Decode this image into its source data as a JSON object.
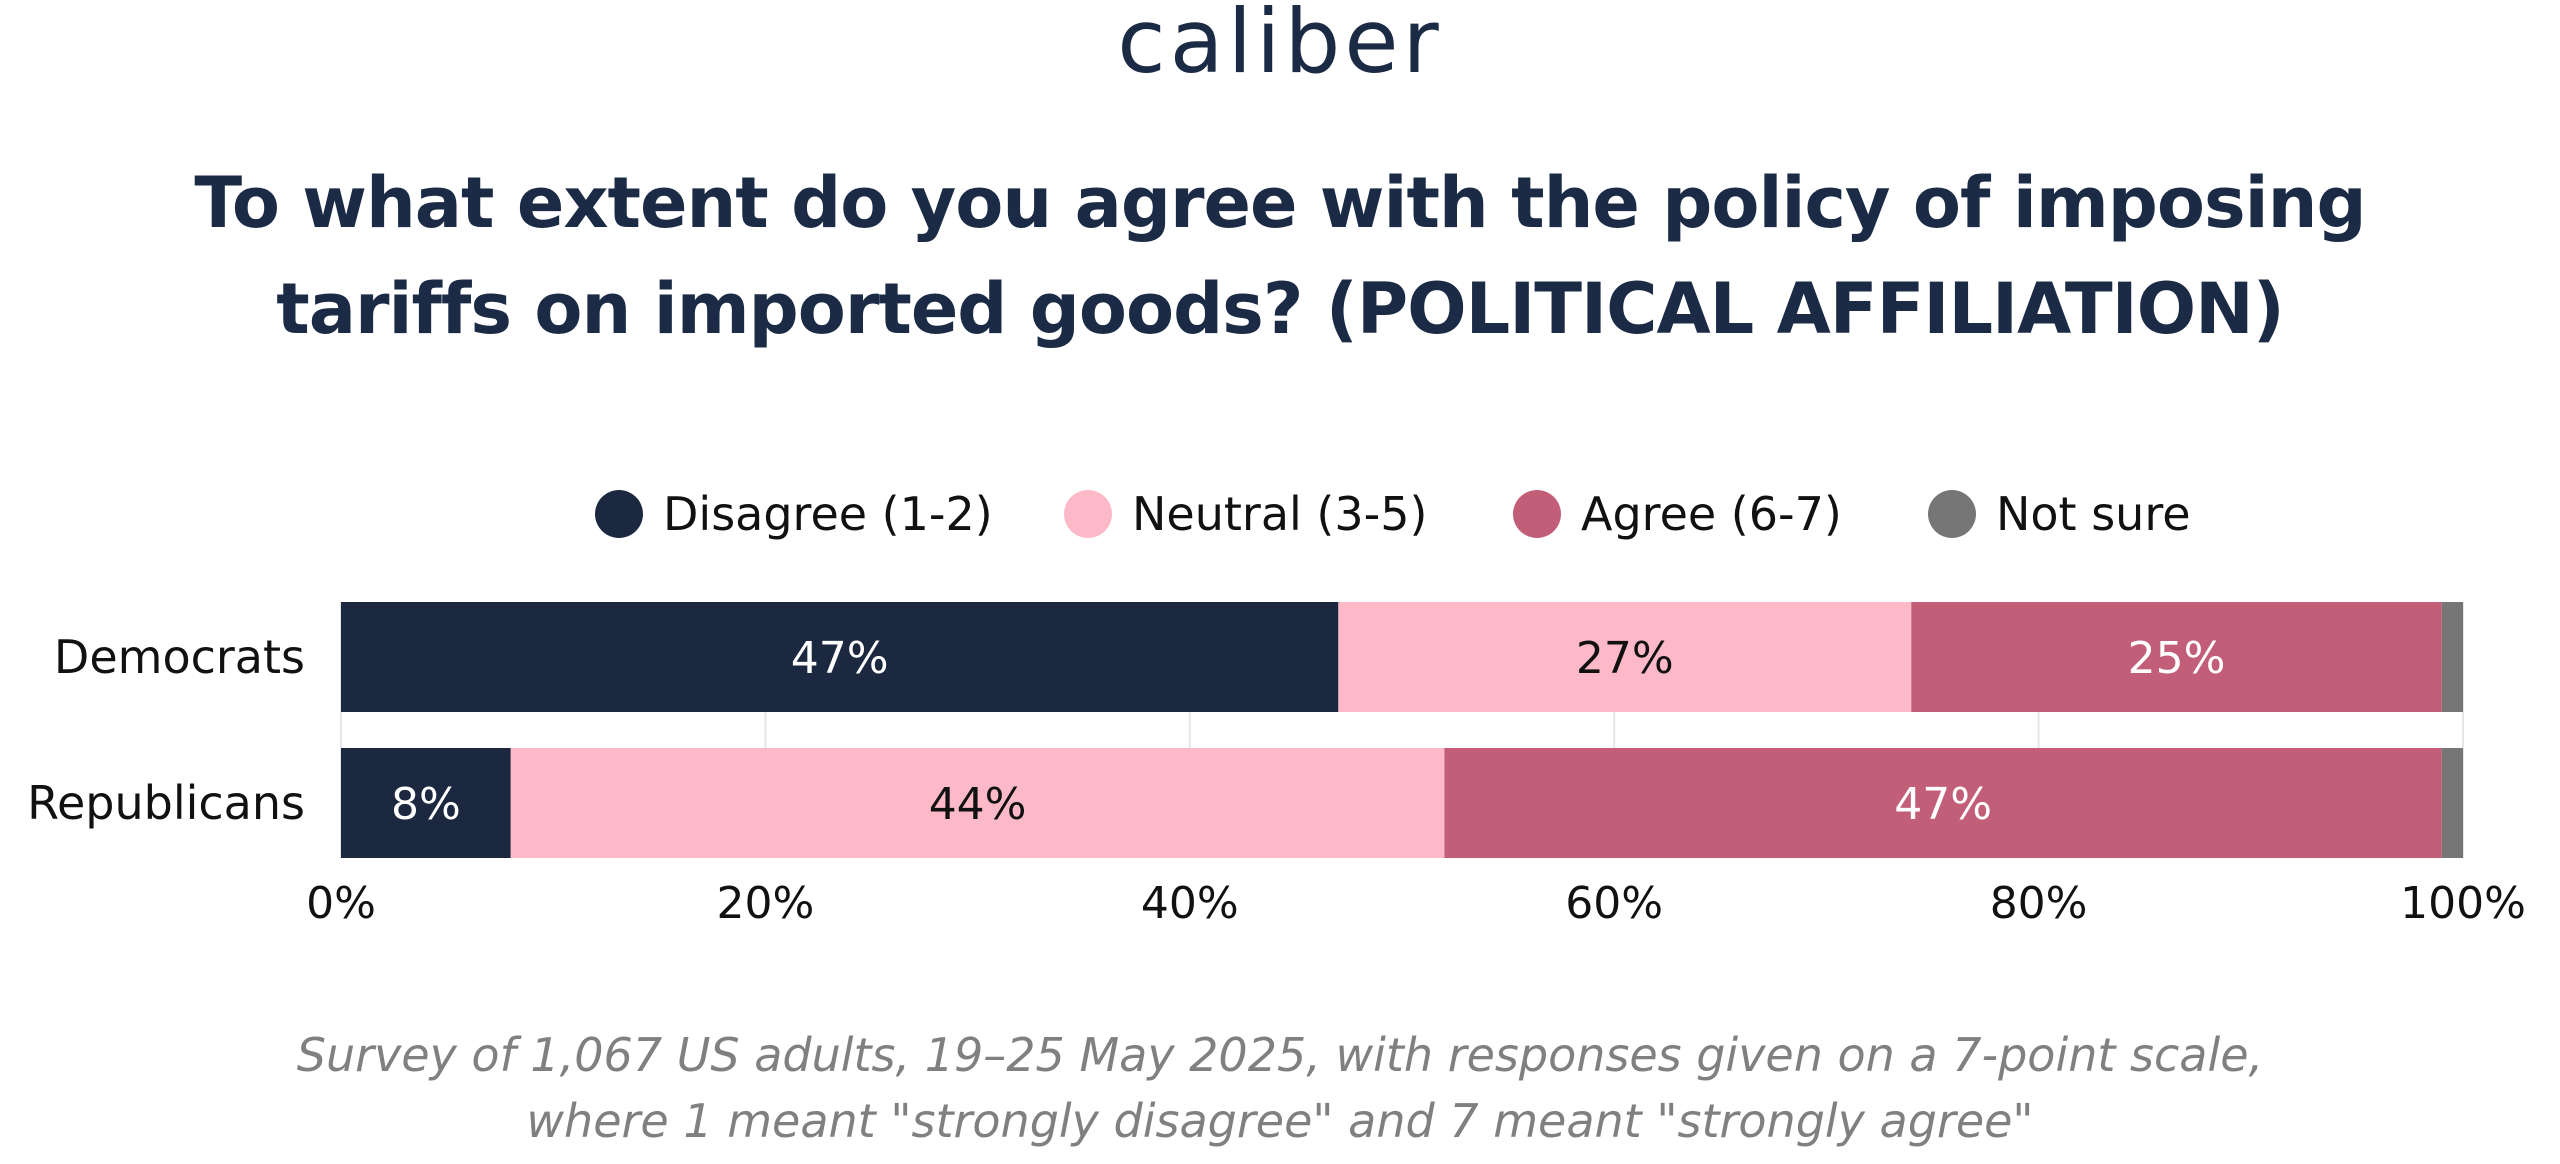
{
  "logo_text": "caliber",
  "title_lines": [
    "To what extent do you agree with the policy of imposing",
    "tariffs on imported goods? (POLITICAL AFFILIATION)"
  ],
  "footnote_lines": [
    "Survey of 1,067 US adults, 19–25 May 2025, with responses given on a 7-point scale,",
    "where 1 meant \"strongly disagree\" and 7 meant \"strongly agree\""
  ],
  "chart_data": {
    "type": "bar",
    "orientation": "horizontal",
    "stacked": true,
    "categories": [
      "Democrats",
      "Republicans"
    ],
    "series": [
      {
        "name": "Disagree (1-2)",
        "color": "#1b2840",
        "label_color": "#ffffff",
        "values": [
          47,
          8
        ],
        "labels": [
          "47%",
          "8%"
        ]
      },
      {
        "name": "Neutral (3-5)",
        "color": "#fdb9c7",
        "label_color": "#111111",
        "values": [
          27,
          44
        ],
        "labels": [
          "27%",
          "44%"
        ]
      },
      {
        "name": "Agree (6-7)",
        "color": "#c25e77",
        "label_color": "#ffffff",
        "values": [
          25,
          47
        ],
        "labels": [
          "25%",
          "47%"
        ]
      },
      {
        "name": "Not sure",
        "color": "#767676",
        "label_color": "#ffffff",
        "values": [
          1,
          1
        ],
        "labels": [
          "",
          ""
        ]
      }
    ],
    "xlim": [
      0,
      100
    ],
    "xticks": [
      0,
      20,
      40,
      60,
      80,
      100
    ],
    "xtick_labels": [
      "0%",
      "20%",
      "40%",
      "60%",
      "80%",
      "100%"
    ],
    "grid": true,
    "legend_position": "top"
  }
}
